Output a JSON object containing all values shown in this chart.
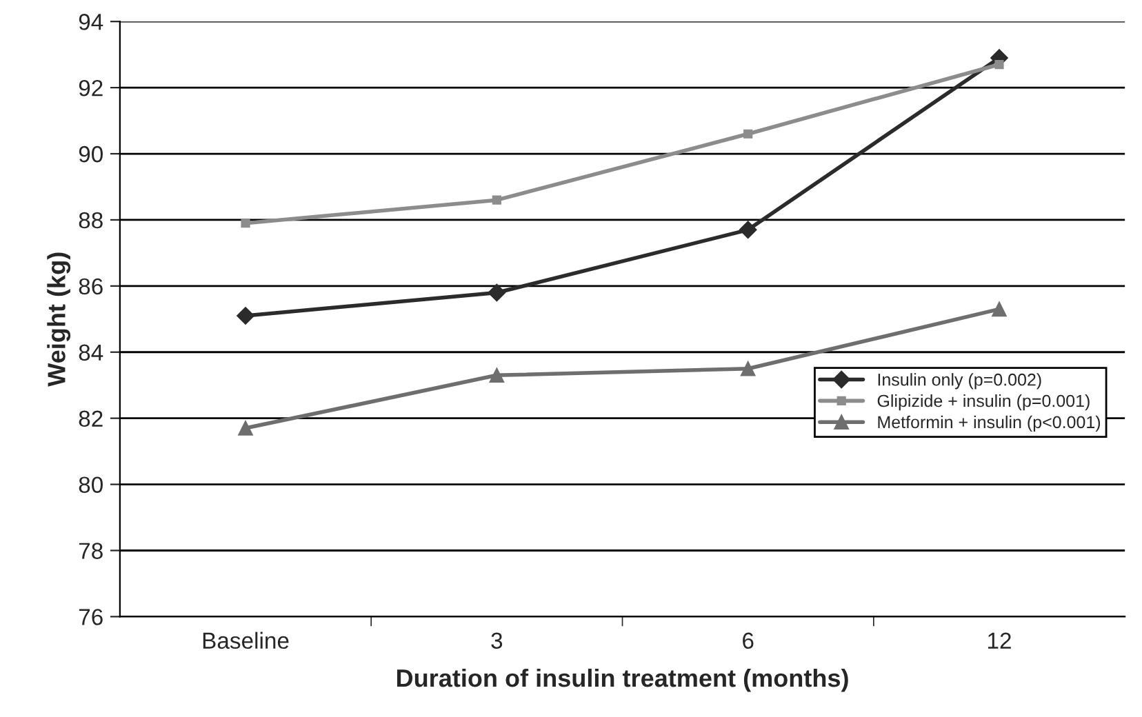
{
  "chart_data": {
    "type": "line",
    "xlabel": "Duration of insulin treatment (months)",
    "ylabel": "Weight (kg)",
    "categories": [
      "Baseline",
      "3",
      "6",
      "12"
    ],
    "series": [
      {
        "name": "Insulin only (p=0.002)",
        "color": "#2b2b2b",
        "marker": "diamond",
        "values": [
          85.1,
          85.8,
          87.7,
          92.9
        ]
      },
      {
        "name": "Glipizide + insulin (p=0.001)",
        "color": "#8c8c8c",
        "marker": "square",
        "values": [
          87.9,
          88.6,
          90.6,
          92.7
        ]
      },
      {
        "name": "Metformin + insulin (p<0.001)",
        "color": "#6e6e6e",
        "marker": "triangle",
        "values": [
          81.7,
          83.3,
          83.5,
          85.3
        ]
      }
    ],
    "ylim": [
      76,
      94
    ],
    "yticks": [
      76,
      78,
      80,
      82,
      84,
      86,
      88,
      90,
      92,
      94
    ],
    "grid": "y",
    "legend": "right",
    "line_style": "solid"
  }
}
